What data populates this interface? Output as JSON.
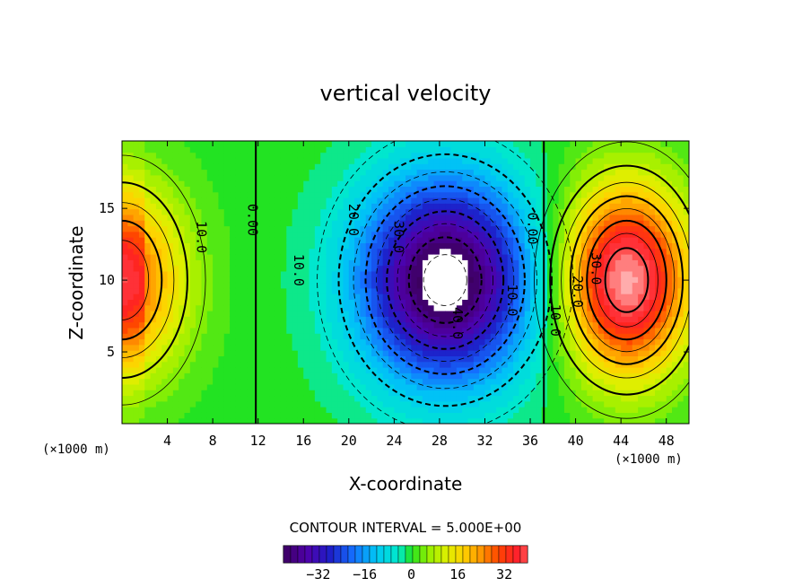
{
  "chart_data": {
    "type": "heatmap",
    "title": "vertical velocity",
    "xlabel": "X-coordinate",
    "ylabel": "Z-coordinate",
    "x_unit": "(×1000 m)",
    "z_unit": "(×1000 m)",
    "xlim": [
      0,
      50
    ],
    "ylim": [
      0,
      19.7
    ],
    "x_ticks": [
      "4",
      "8",
      "12",
      "16",
      "20",
      "24",
      "28",
      "32",
      "36",
      "40",
      "44",
      "48"
    ],
    "y_ticks": [
      "5",
      "10",
      "15"
    ],
    "contour_interval_text": "CONTOUR INTERVAL = 5.000E+00",
    "colorbar": {
      "range": [
        -44,
        40
      ],
      "ticks": [
        "−32",
        "−16",
        "0",
        "16",
        "32"
      ]
    },
    "features": [
      {
        "kind": "updraft",
        "x": 0,
        "z": 10,
        "max": 30
      },
      {
        "kind": "downdraft",
        "x": 28.5,
        "z": 10,
        "min": -48
      },
      {
        "kind": "updraft",
        "x": 44.5,
        "z": 10,
        "max": 45
      }
    ],
    "contour_labels": [
      {
        "text": "10.0",
        "x": 7,
        "z": 13
      },
      {
        "text": "0.00",
        "x": 11.5,
        "z": 14.2
      },
      {
        "text": "10.0",
        "x": 15.6,
        "z": 10.7
      },
      {
        "text": "20.0",
        "x": 20.4,
        "z": 14.2
      },
      {
        "text": "30.0",
        "x": 24.4,
        "z": 13
      },
      {
        "text": "40.0",
        "x": 29.6,
        "z": 7
      },
      {
        "text": "10.0",
        "x": 34.4,
        "z": 8.6
      },
      {
        "text": "0.00",
        "x": 36.2,
        "z": 13.6
      },
      {
        "text": "10.0",
        "x": 38.2,
        "z": 7.2
      },
      {
        "text": "20.0",
        "x": 40.2,
        "z": 9.2
      },
      {
        "text": "30.0",
        "x": 41.8,
        "z": 10.8
      }
    ]
  }
}
